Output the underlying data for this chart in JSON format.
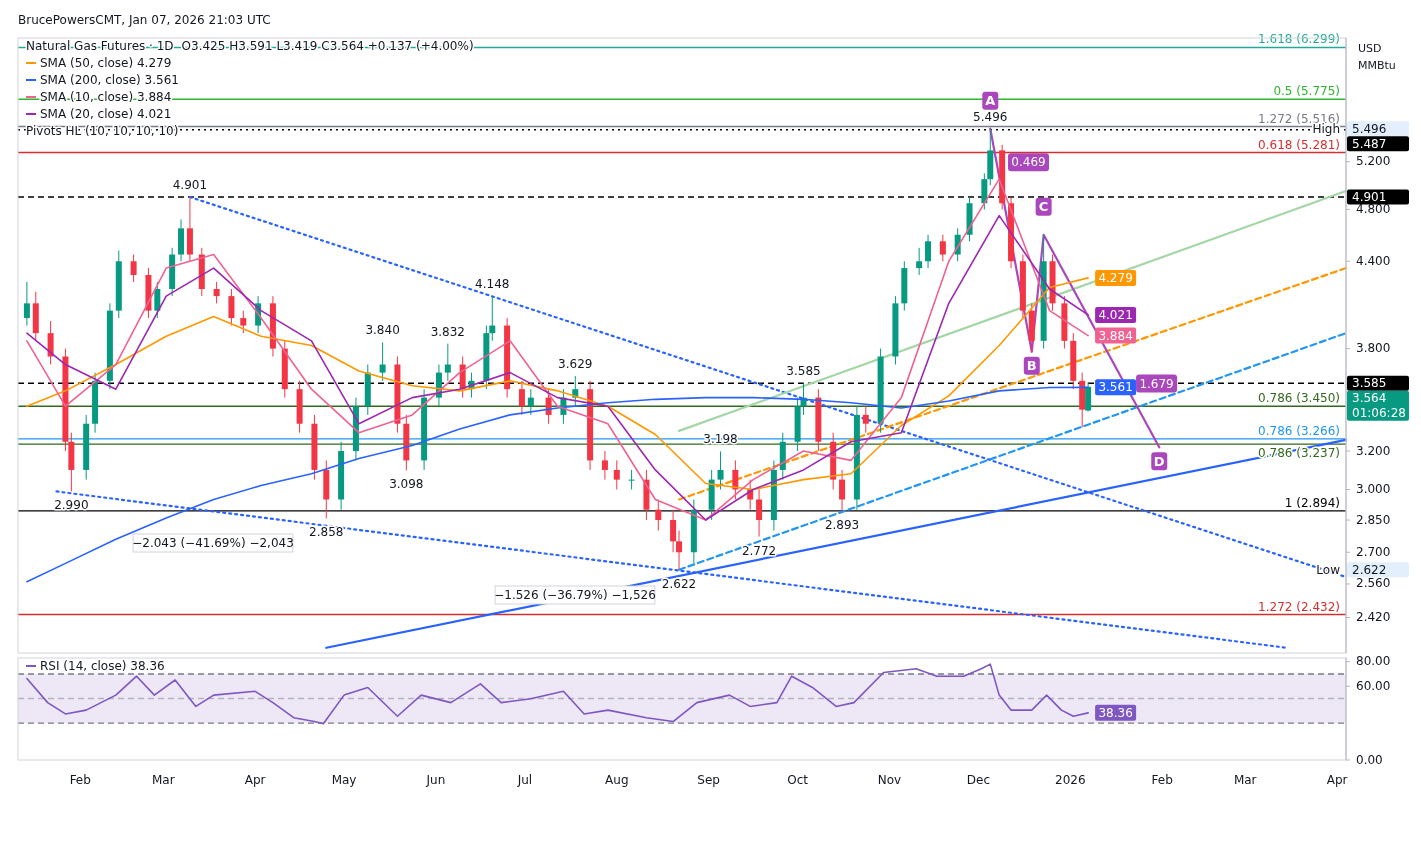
{
  "chart_data": [
    {
      "type": "candlestick",
      "title": "Natural Gas Futures · 1D",
      "subtitle": "O3.425  H3.591  L3.419  C3.564  +0.137 (+4.00%)",
      "ylabel": "USD\nMMBtu",
      "log": "y",
      "legend": "top left",
      "tick_labels": "y",
      "xlim": [
        "2025-01-11",
        "2026-04-04"
      ],
      "ylim": [
        2.28,
        6.4
      ],
      "yticks": [
        {
          "value": 2.42,
          "label": "2.420"
        },
        {
          "value": 2.56,
          "label": "2.560"
        },
        {
          "value": 2.7,
          "label": "2.700"
        },
        {
          "value": 2.85,
          "label": "2.850"
        },
        {
          "value": 3,
          "label": "3.000"
        },
        {
          "value": 3.2,
          "label": "3.200"
        },
        {
          "value": 3.8,
          "label": "3.800"
        },
        {
          "value": 4.4,
          "label": "4.400"
        },
        {
          "value": 4.8,
          "label": "4.800"
        },
        {
          "value": 5.2,
          "label": "5.200"
        }
      ],
      "x": [
        "2025-01-14",
        "2025-01-17",
        "2025-01-22",
        "2025-01-27",
        "2025-01-29",
        "2025-02-03",
        "2025-02-06",
        "2025-02-11",
        "2025-02-14",
        "2025-02-19",
        "2025-02-24",
        "2025-02-27",
        "2025-03-04",
        "2025-03-07",
        "2025-03-10",
        "2025-03-14",
        "2025-03-19",
        "2025-03-24",
        "2025-03-28",
        "2025-04-02",
        "2025-04-07",
        "2025-04-11",
        "2025-04-16",
        "2025-04-21",
        "2025-04-25",
        "2025-04-30",
        "2025-05-05",
        "2025-05-09",
        "2025-05-14",
        "2025-05-19",
        "2025-05-22",
        "2025-05-28",
        "2025-06-02",
        "2025-06-05",
        "2025-06-10",
        "2025-06-13",
        "2025-06-18",
        "2025-06-20",
        "2025-06-25",
        "2025-06-30",
        "2025-07-03",
        "2025-07-09",
        "2025-07-14",
        "2025-07-18",
        "2025-07-23",
        "2025-07-28",
        "2025-08-01",
        "2025-08-06",
        "2025-08-11",
        "2025-08-15",
        "2025-08-20",
        "2025-08-22",
        "2025-08-27",
        "2025-09-02",
        "2025-09-05",
        "2025-09-10",
        "2025-09-15",
        "2025-09-18",
        "2025-09-23",
        "2025-09-26",
        "2025-10-01",
        "2025-10-03",
        "2025-10-08",
        "2025-10-13",
        "2025-10-16",
        "2025-10-21",
        "2025-10-24",
        "2025-10-29",
        "2025-11-03",
        "2025-11-06",
        "2025-11-11",
        "2025-11-14",
        "2025-11-19",
        "2025-11-24",
        "2025-11-28",
        "2025-12-03",
        "2025-12-05",
        "2025-12-09",
        "2025-12-12",
        "2025-12-16",
        "2025-12-19",
        "2025-12-23",
        "2025-12-26",
        "2025-12-30",
        "2026-01-02",
        "2026-01-05",
        "2026-01-07"
      ],
      "ohlc": [
        [
          4.0,
          4.25,
          3.95,
          4.1
        ],
        [
          4.1,
          4.18,
          3.85,
          3.9
        ],
        [
          3.9,
          3.98,
          3.7,
          3.75
        ],
        [
          3.75,
          3.8,
          3.2,
          3.25
        ],
        [
          3.25,
          3.3,
          2.99,
          3.1
        ],
        [
          3.1,
          3.4,
          3.05,
          3.35
        ],
        [
          3.35,
          3.65,
          3.3,
          3.6
        ],
        [
          3.6,
          4.1,
          3.55,
          4.05
        ],
        [
          4.05,
          4.48,
          4.0,
          4.4
        ],
        [
          4.4,
          4.45,
          4.25,
          4.3
        ],
        [
          4.3,
          4.35,
          4.0,
          4.05
        ],
        [
          4.05,
          4.25,
          4.0,
          4.2
        ],
        [
          4.2,
          4.5,
          4.15,
          4.45
        ],
        [
          4.45,
          4.72,
          4.4,
          4.65
        ],
        [
          4.65,
          4.901,
          4.4,
          4.45
        ],
        [
          4.45,
          4.5,
          4.15,
          4.2
        ],
        [
          4.2,
          4.25,
          4.1,
          4.15
        ],
        [
          4.15,
          4.2,
          3.95,
          4.0
        ],
        [
          4.0,
          4.05,
          3.9,
          3.95
        ],
        [
          3.95,
          4.15,
          3.9,
          4.1
        ],
        [
          4.1,
          4.15,
          3.75,
          3.8
        ],
        [
          3.8,
          3.85,
          3.5,
          3.55
        ],
        [
          3.55,
          3.6,
          3.3,
          3.35
        ],
        [
          3.35,
          3.4,
          3.05,
          3.1
        ],
        [
          3.1,
          3.15,
          2.858,
          2.95
        ],
        [
          2.95,
          3.25,
          2.9,
          3.2
        ],
        [
          3.2,
          3.5,
          3.15,
          3.45
        ],
        [
          3.45,
          3.7,
          3.4,
          3.65
        ],
        [
          3.65,
          3.84,
          3.6,
          3.7
        ],
        [
          3.7,
          3.75,
          3.3,
          3.35
        ],
        [
          3.35,
          3.4,
          3.098,
          3.15
        ],
        [
          3.15,
          3.55,
          3.1,
          3.5
        ],
        [
          3.5,
          3.7,
          3.45,
          3.65
        ],
        [
          3.65,
          3.832,
          3.6,
          3.7
        ],
        [
          3.7,
          3.75,
          3.5,
          3.55
        ],
        [
          3.55,
          3.65,
          3.5,
          3.6
        ],
        [
          3.6,
          3.95,
          3.55,
          3.9
        ],
        [
          3.9,
          4.148,
          3.85,
          3.95
        ],
        [
          3.95,
          4.0,
          3.5,
          3.55
        ],
        [
          3.55,
          3.6,
          3.4,
          3.45
        ],
        [
          3.45,
          3.55,
          3.4,
          3.5
        ],
        [
          3.5,
          3.55,
          3.35,
          3.4
        ],
        [
          3.4,
          3.55,
          3.35,
          3.5
        ],
        [
          3.5,
          3.629,
          3.45,
          3.55
        ],
        [
          3.55,
          3.6,
          3.1,
          3.15
        ],
        [
          3.15,
          3.2,
          3.05,
          3.1
        ],
        [
          3.1,
          3.15,
          3.0,
          3.05
        ],
        [
          3.05,
          3.1,
          3.0,
          3.05
        ],
        [
          3.05,
          3.1,
          2.85,
          2.9
        ],
        [
          2.9,
          2.95,
          2.8,
          2.85
        ],
        [
          2.85,
          2.9,
          2.7,
          2.75
        ],
        [
          2.75,
          2.8,
          2.622,
          2.7
        ],
        [
          2.7,
          2.95,
          2.65,
          2.9
        ],
        [
          2.9,
          3.1,
          2.85,
          3.05
        ],
        [
          3.05,
          3.198,
          3.0,
          3.1
        ],
        [
          3.1,
          3.15,
          2.95,
          3.0
        ],
        [
          3.0,
          3.05,
          2.9,
          2.95
        ],
        [
          2.95,
          3.0,
          2.772,
          2.85
        ],
        [
          2.85,
          3.15,
          2.8,
          3.1
        ],
        [
          3.1,
          3.3,
          3.05,
          3.25
        ],
        [
          3.25,
          3.5,
          3.2,
          3.45
        ],
        [
          3.45,
          3.585,
          3.4,
          3.5
        ],
        [
          3.5,
          3.55,
          3.2,
          3.25
        ],
        [
          3.25,
          3.3,
          3.0,
          3.05
        ],
        [
          3.05,
          3.1,
          2.893,
          2.95
        ],
        [
          2.95,
          3.45,
          2.9,
          3.4
        ],
        [
          3.4,
          3.45,
          3.3,
          3.35
        ],
        [
          3.35,
          3.8,
          3.3,
          3.75
        ],
        [
          3.75,
          4.15,
          3.7,
          4.1
        ],
        [
          4.1,
          4.4,
          4.05,
          4.35
        ],
        [
          4.35,
          4.5,
          4.3,
          4.4
        ],
        [
          4.4,
          4.6,
          4.35,
          4.55
        ],
        [
          4.55,
          4.6,
          4.4,
          4.45
        ],
        [
          4.45,
          4.65,
          4.4,
          4.6
        ],
        [
          4.6,
          4.9,
          4.55,
          4.85
        ],
        [
          4.85,
          5.1,
          4.8,
          5.05
        ],
        [
          5.05,
          5.496,
          5.0,
          5.3
        ],
        [
          5.3,
          5.35,
          4.8,
          4.85
        ],
        [
          4.85,
          4.9,
          4.35,
          4.4
        ],
        [
          4.4,
          4.45,
          4.0,
          4.05
        ],
        [
          4.05,
          4.1,
          3.78,
          3.85
        ],
        [
          3.85,
          4.6,
          3.8,
          4.4
        ],
        [
          4.4,
          4.45,
          4.05,
          4.1
        ],
        [
          4.1,
          4.15,
          3.8,
          3.85
        ],
        [
          3.85,
          3.9,
          3.55,
          3.6
        ],
        [
          3.6,
          3.65,
          3.33,
          3.43
        ],
        [
          3.425,
          3.591,
          3.419,
          3.564
        ]
      ],
      "series": [
        {
          "type": "line",
          "name": "SMA (50, close)  4.279",
          "color": "#ff9800",
          "x": [
            "2025-01-14",
            "2025-01-27",
            "2025-02-13",
            "2025-03-02",
            "2025-03-18",
            "2025-04-03",
            "2025-04-20",
            "2025-05-06",
            "2025-05-24",
            "2025-06-09",
            "2025-06-26",
            "2025-07-12",
            "2025-07-29",
            "2025-08-14",
            "2025-08-31",
            "2025-09-16",
            "2025-10-03",
            "2025-10-19",
            "2025-11-05",
            "2025-11-21",
            "2025-12-08",
            "2025-12-25",
            "2026-01-07"
          ],
          "values": [
            3.45,
            3.54,
            3.7,
            3.88,
            4.01,
            3.88,
            3.82,
            3.66,
            3.57,
            3.54,
            3.6,
            3.54,
            3.45,
            3.29,
            3.03,
            3.0,
            3.05,
            3.08,
            3.34,
            3.51,
            3.82,
            4.21,
            4.279
          ],
          "value_labels": [
            null,
            null,
            null,
            null,
            null,
            null,
            null,
            null,
            null,
            null,
            null,
            null,
            null,
            null,
            null,
            null,
            null,
            null,
            null,
            null,
            null,
            null,
            "4.279"
          ]
        },
        {
          "type": "line",
          "name": "SMA (200, close)  3.561",
          "color": "#2962ff",
          "x": [
            "2025-01-14",
            "2025-01-27",
            "2025-02-13",
            "2025-03-02",
            "2025-03-18",
            "2025-04-03",
            "2025-04-20",
            "2025-05-06",
            "2025-05-24",
            "2025-06-09",
            "2025-06-26",
            "2025-07-12",
            "2025-07-29",
            "2025-08-14",
            "2025-08-31",
            "2025-09-16",
            "2025-10-03",
            "2025-10-19",
            "2025-11-05",
            "2025-11-21",
            "2025-12-08",
            "2025-12-25",
            "2026-01-07"
          ],
          "values": [
            2.57,
            2.65,
            2.76,
            2.86,
            2.95,
            3.02,
            3.08,
            3.16,
            3.23,
            3.32,
            3.4,
            3.44,
            3.47,
            3.49,
            3.5,
            3.5,
            3.49,
            3.47,
            3.44,
            3.48,
            3.54,
            3.56,
            3.561
          ],
          "value_labels": [
            null,
            null,
            null,
            null,
            null,
            null,
            null,
            null,
            null,
            null,
            null,
            null,
            null,
            null,
            null,
            null,
            null,
            null,
            null,
            null,
            null,
            null,
            "3.561"
          ]
        },
        {
          "type": "line",
          "name": "SMA (10, close)  3.884",
          "color": "#f06292",
          "x": [
            "2025-01-14",
            "2025-01-27",
            "2025-02-13",
            "2025-03-02",
            "2025-03-18",
            "2025-04-03",
            "2025-04-20",
            "2025-05-06",
            "2025-05-24",
            "2025-06-09",
            "2025-06-26",
            "2025-07-12",
            "2025-07-29",
            "2025-08-14",
            "2025-08-31",
            "2025-09-16",
            "2025-10-03",
            "2025-10-19",
            "2025-11-05",
            "2025-11-21",
            "2025-12-08",
            "2025-12-25",
            "2026-01-07"
          ],
          "values": [
            3.85,
            3.45,
            3.7,
            4.35,
            4.45,
            4.0,
            3.55,
            3.3,
            3.4,
            3.65,
            3.85,
            3.45,
            3.35,
            2.95,
            2.85,
            3.05,
            3.2,
            3.15,
            3.5,
            4.4,
            5.05,
            4.05,
            3.884
          ],
          "value_labels": [
            null,
            null,
            null,
            null,
            null,
            null,
            null,
            null,
            null,
            null,
            null,
            null,
            null,
            null,
            null,
            null,
            null,
            null,
            null,
            null,
            null,
            null,
            "3.884"
          ]
        },
        {
          "type": "line",
          "name": "SMA (20, close)  4.021",
          "color": "#9c27b0",
          "x": [
            "2025-01-14",
            "2025-01-27",
            "2025-02-13",
            "2025-03-02",
            "2025-03-18",
            "2025-04-03",
            "2025-04-20",
            "2025-05-06",
            "2025-05-24",
            "2025-06-09",
            "2025-06-26",
            "2025-07-12",
            "2025-07-29",
            "2025-08-14",
            "2025-08-31",
            "2025-09-16",
            "2025-10-03",
            "2025-10-19",
            "2025-11-05",
            "2025-11-21",
            "2025-12-08",
            "2025-12-25",
            "2026-01-07"
          ],
          "values": [
            3.9,
            3.7,
            3.55,
            4.15,
            4.35,
            4.05,
            3.85,
            3.35,
            3.5,
            3.55,
            3.65,
            3.5,
            3.45,
            3.1,
            2.85,
            3.0,
            3.1,
            3.25,
            3.3,
            4.1,
            4.75,
            4.2,
            4.021
          ],
          "value_labels": [
            null,
            null,
            null,
            null,
            null,
            null,
            null,
            null,
            null,
            null,
            null,
            null,
            null,
            null,
            null,
            null,
            null,
            null,
            null,
            null,
            null,
            null,
            "4.021"
          ]
        },
        {
          "type": "line",
          "color": "#2962ff",
          "x": [
            "2025-04-25",
            "2026-04-04"
          ],
          "values": [
            2.3,
            3.26
          ]
        },
        {
          "type": "line",
          "color": "#2962ff",
          "line_style": "dotted",
          "x": [
            "2025-03-10",
            "2026-04-04"
          ],
          "values": [
            4.901,
            2.59
          ]
        },
        {
          "type": "line",
          "color": "#2962ff",
          "line_style": "dotted",
          "x": [
            "2025-01-24",
            "2026-03-15"
          ],
          "values": [
            2.99,
            2.3
          ]
        },
        {
          "type": "line",
          "color": "#ff9800",
          "line_style": "dashed",
          "x": [
            "2025-08-22",
            "2026-04-04"
          ],
          "values": [
            2.95,
            4.35
          ]
        },
        {
          "type": "line",
          "color": "#2196f3",
          "line_style": "dashed",
          "x": [
            "2025-08-22",
            "2026-04-04"
          ],
          "values": [
            2.622,
            3.9
          ]
        },
        {
          "type": "line",
          "color": "#a5d6a7",
          "x": [
            "2025-08-22",
            "2026-04-04"
          ],
          "values": [
            3.31,
            4.95
          ]
        },
        {
          "type": "line",
          "color": "#ab47bc",
          "x": [
            "2025-12-05",
            "2025-12-19",
            "2025-12-23",
            "2026-01-31"
          ],
          "values": [
            5.496,
            3.78,
            4.6,
            3.22
          ],
          "value_labels": [
            "A",
            "B",
            "C",
            "D"
          ]
        }
      ],
      "ref_lines": [
        {
          "axis": "y",
          "value": 6.299,
          "label": "1.618 (6.299)",
          "color": "#22ab94"
        },
        {
          "axis": "y",
          "value": 5.775,
          "label": "0.5 (5.775)",
          "color": "#2db82d"
        },
        {
          "axis": "y",
          "value": 5.516,
          "label": "1.272 (5.516)",
          "color": "#787b86"
        },
        {
          "axis": "y",
          "value": 5.487,
          "label": "5.487",
          "color": "#000000",
          "line_style": "dotted"
        },
        {
          "axis": "y",
          "value": 5.281,
          "label": "0.618 (5.281)",
          "color": "#d32f2f"
        },
        {
          "axis": "y",
          "value": 4.901,
          "label": "4.901",
          "color": "#000000",
          "line_style": "dashed"
        },
        {
          "axis": "y",
          "value": 3.585,
          "label": "3.585",
          "color": "#000000",
          "line_style": "dashed"
        },
        {
          "axis": "y",
          "value": 3.45,
          "label": "0.786 (3.450)",
          "color": "#33691e"
        },
        {
          "axis": "y",
          "value": 3.266,
          "label": "0.786 (3.266)",
          "color": "#2196f3"
        },
        {
          "axis": "y",
          "value": 3.237,
          "label": "0.786 (3.237)",
          "color": "#33691e"
        },
        {
          "axis": "y",
          "value": 2.894,
          "label": "1 (2.894)",
          "color": "#000000"
        },
        {
          "axis": "y",
          "value": 2.432,
          "label": "1.272 (2.432)",
          "color": "#d32f2f"
        }
      ],
      "annotations": [
        "BrucePowersCMT, Jan 07, 2026 21:03 UTC",
        "Pivots HL (10, 10, 10, 10)",
        "−2.043 (−41.69%) −2,043",
        "−1.526 (−36.79%) −1,526",
        "High",
        "Low",
        "3.564",
        "01:06:28",
        "0.469",
        "1.679",
        {
          "text": "4.901",
          "x": "2025-03-10",
          "y": 4.901
        },
        {
          "text": "4.148",
          "x": "2025-06-20",
          "y": 4.148
        },
        {
          "text": "3.840",
          "x": "2025-05-14",
          "y": 3.84
        },
        {
          "text": "3.832",
          "x": "2025-06-05",
          "y": 3.832
        },
        {
          "text": "3.629",
          "x": "2025-07-18",
          "y": 3.629
        },
        {
          "text": "3.585",
          "x": "2025-10-03",
          "y": 3.585
        },
        {
          "text": "3.198",
          "x": "2025-09-05",
          "y": 3.198
        },
        {
          "text": "3.098",
          "x": "2025-05-22",
          "y": 3.098
        },
        {
          "text": "2.990",
          "x": "2025-01-29",
          "y": 2.99
        },
        {
          "text": "2.858",
          "x": "2025-04-25",
          "y": 2.858
        },
        {
          "text": "2.893",
          "x": "2025-10-16",
          "y": 2.893
        },
        {
          "text": "2.772",
          "x": "2025-09-18",
          "y": 2.772
        },
        {
          "text": "2.622",
          "x": "2025-08-22",
          "y": 2.622
        },
        {
          "text": "5.496",
          "x": "2025-12-05",
          "y": 5.496
        }
      ]
    },
    {
      "type": "line",
      "legend": "top left",
      "xlim": [
        "2025-01-11",
        "2026-04-04"
      ],
      "xticks": [
        {
          "value": "2025-02-01",
          "label": "Feb"
        },
        {
          "value": "2025-03-01",
          "label": "Mar"
        },
        {
          "value": "2025-04-01",
          "label": "Apr"
        },
        {
          "value": "2025-05-01",
          "label": "May"
        },
        {
          "value": "2025-06-01",
          "label": "Jun"
        },
        {
          "value": "2025-07-01",
          "label": "Jul"
        },
        {
          "value": "2025-08-01",
          "label": "Aug"
        },
        {
          "value": "2025-09-01",
          "label": "Sep"
        },
        {
          "value": "2025-10-01",
          "label": "Oct"
        },
        {
          "value": "2025-11-01",
          "label": "Nov"
        },
        {
          "value": "2025-12-01",
          "label": "Dec"
        },
        {
          "value": "2026-01-01",
          "label": "2026"
        },
        {
          "value": "2026-02-01",
          "label": "Feb"
        },
        {
          "value": "2026-03-01",
          "label": "Mar"
        },
        {
          "value": "2026-04-01",
          "label": "Apr"
        }
      ],
      "ylim": [
        0,
        83
      ],
      "yticks": [
        {
          "value": 80,
          "label": "80.00"
        },
        {
          "value": 60,
          "label": "60.00"
        },
        {
          "value": 0,
          "label": "0.00"
        }
      ],
      "bands": [
        {
          "axis": "y",
          "from": 30,
          "to": 70,
          "color": "#ede7f6"
        }
      ],
      "ref_lines": [
        {
          "axis": "y",
          "value": 70,
          "color": "#787b86",
          "line_style": "dashed"
        },
        {
          "axis": "y",
          "value": 50,
          "color": "#b2b5be",
          "line_style": "dashed"
        },
        {
          "axis": "y",
          "value": 30,
          "color": "#787b86",
          "line_style": "dashed"
        }
      ],
      "series": [
        {
          "name": "RSI (14, close)  38.36",
          "color": "#7e57c2",
          "value_labels": [
            null,
            null,
            null,
            null,
            null,
            null,
            null,
            null,
            null,
            null,
            null,
            null,
            null,
            null,
            null,
            null,
            null,
            null,
            null,
            null,
            null,
            null,
            null,
            null,
            null,
            null,
            null,
            null,
            null,
            null,
            null,
            null,
            null,
            null,
            null,
            null,
            null,
            null,
            null,
            null,
            null,
            null,
            null,
            null,
            null,
            null,
            null,
            null,
            "38.36"
          ],
          "x": [
            "2025-01-14",
            "2025-01-21",
            "2025-01-27",
            "2025-02-03",
            "2025-02-13",
            "2025-02-20",
            "2025-02-26",
            "2025-03-05",
            "2025-03-12",
            "2025-03-18",
            "2025-04-01",
            "2025-04-07",
            "2025-04-14",
            "2025-04-21",
            "2025-04-24",
            "2025-05-01",
            "2025-05-09",
            "2025-05-19",
            "2025-05-27",
            "2025-06-06",
            "2025-06-16",
            "2025-06-23",
            "2025-07-03",
            "2025-07-14",
            "2025-07-21",
            "2025-07-29",
            "2025-08-11",
            "2025-08-20",
            "2025-08-28",
            "2025-09-08",
            "2025-09-15",
            "2025-09-24",
            "2025-09-29",
            "2025-10-06",
            "2025-10-14",
            "2025-10-20",
            "2025-10-30",
            "2025-11-10",
            "2025-11-17",
            "2025-11-26",
            "2025-12-02",
            "2025-12-05",
            "2025-12-08",
            "2025-12-12",
            "2025-12-19",
            "2025-12-24",
            "2025-12-29",
            "2026-01-02",
            "2026-01-07"
          ],
          "values": [
            66.3,
            46.7,
            37.5,
            40.6,
            52.8,
            68.2,
            52.8,
            65.1,
            43.6,
            52.8,
            55.9,
            46.7,
            34.4,
            31.3,
            29.5,
            52.8,
            59.0,
            35.6,
            52.8,
            46.7,
            62.0,
            46.7,
            49.8,
            55.9,
            37.5,
            40.6,
            34.4,
            31.3,
            46.7,
            52.8,
            43.6,
            46.7,
            68.2,
            59.0,
            43.6,
            46.7,
            71.2,
            74.3,
            68.2,
            68.2,
            74.3,
            78.0,
            52.8,
            40.6,
            40.6,
            52.8,
            40.6,
            35.6,
            38.36
          ]
        }
      ]
    }
  ]
}
